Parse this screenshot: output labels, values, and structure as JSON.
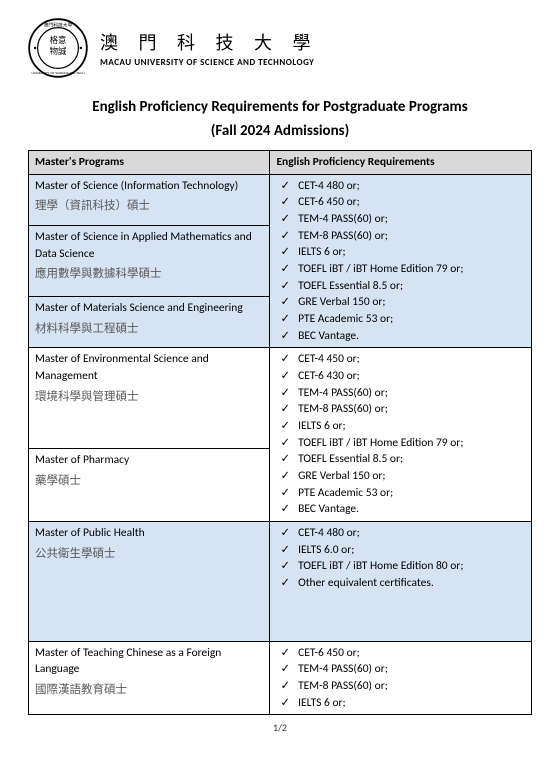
{
  "header": {
    "university_cn": "澳 門 科 技 大 學",
    "university_en": "MACAU UNIVERSITY OF SCIENCE AND TECHNOLOGY",
    "logo_inner": "格意物誠"
  },
  "title": "English Proficiency Requirements for Postgraduate Programs",
  "subtitle": "(Fall 2024 Admissions)",
  "columns": {
    "programs": "Master's Programs",
    "requirements": "English Proficiency Requirements"
  },
  "groups": [
    {
      "bg": "blue",
      "programs": [
        {
          "en": "Master of Science (Information Technology)",
          "cn": "理學（資訊科技）碩士"
        },
        {
          "en": "Master of Science in Applied Mathematics and Data Science",
          "cn": "應用數學與數據科學碩士"
        },
        {
          "en": "Master of Materials Science and Engineering",
          "cn": "材料科學與工程碩士"
        }
      ],
      "requirements": [
        "CET-4 480 or;",
        "CET-6 450 or;",
        "TEM-4 PASS(60) or;",
        "TEM-8 PASS(60) or;",
        "IELTS 6 or;",
        "TOEFL iBT / iBT Home Edition 79 or;",
        "TOEFL Essential 8.5 or;",
        "GRE Verbal 150 or;",
        "PTE Academic 53 or;",
        "BEC Vantage."
      ]
    },
    {
      "bg": "white",
      "programs": [
        {
          "en": "Master of Environmental Science and Management",
          "cn": "環境科學與管理碩士"
        },
        {
          "en": "Master of Pharmacy",
          "cn": "藥學碩士"
        }
      ],
      "requirements": [
        "CET-4 450 or;",
        "CET-6 430 or;",
        "TEM-4 PASS(60) or;",
        "TEM-8 PASS(60) or;",
        "IELTS 6 or;",
        "TOEFL iBT / iBT Home Edition 79 or;",
        "TOEFL Essential 8.5 or;",
        "GRE Verbal 150 or;",
        "PTE Academic 53 or;",
        "BEC Vantage."
      ]
    },
    {
      "bg": "blue",
      "programs": [
        {
          "en": "Master of Public Health",
          "cn": "公共衛生學碩士"
        }
      ],
      "requirements": [
        "CET-4 480 or;",
        "IELTS 6.0 or;",
        "TOEFL iBT / iBT Home Edition 80 or;",
        "Other equivalent certificates."
      ],
      "pad": true
    },
    {
      "bg": "white",
      "programs": [
        {
          "en": "Master of Teaching Chinese as a Foreign Language",
          "cn": "國際漢語教育碩士"
        }
      ],
      "requirements": [
        "CET-6 450 or;",
        "TEM-4 PASS(60) or;",
        "TEM-8 PASS(60) or;",
        "IELTS 6 or;"
      ]
    }
  ],
  "footer": "1/2"
}
